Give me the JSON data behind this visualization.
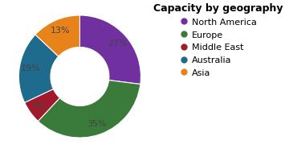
{
  "title": "Capacity by geography",
  "labels": [
    "North America",
    "Europe",
    "Middle East",
    "Australia",
    "Asia"
  ],
  "values": [
    27,
    35,
    6,
    19,
    13
  ],
  "colors": [
    "#7030a0",
    "#3a7a3a",
    "#a0192d",
    "#1f6b8e",
    "#e8821a"
  ],
  "pct_labels": [
    "27%",
    "35%",
    "6%",
    "19%",
    "13%"
  ],
  "background_color": "#ffffff",
  "title_fontsize": 9,
  "label_fontsize": 8,
  "legend_fontsize": 8
}
